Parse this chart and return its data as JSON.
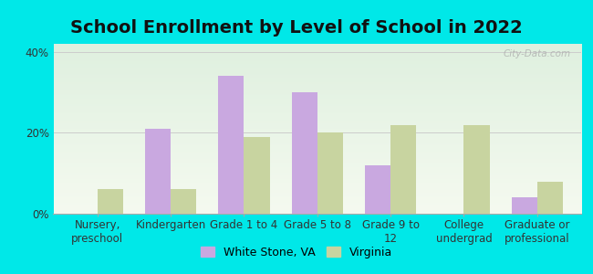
{
  "title": "School Enrollment by Level of School in 2022",
  "categories": [
    "Nursery,\npreschool",
    "Kindergarten",
    "Grade 1 to 4",
    "Grade 5 to 8",
    "Grade 9 to\n12",
    "College\nundergrad",
    "Graduate or\nprofessional"
  ],
  "white_stone": [
    0.0,
    21.0,
    34.0,
    30.0,
    12.0,
    0.0,
    4.0
  ],
  "virginia": [
    6.0,
    6.0,
    19.0,
    20.0,
    22.0,
    22.0,
    8.0
  ],
  "white_stone_color": "#c9a8e0",
  "virginia_color": "#c8d4a0",
  "background_outer": "#00e8e8",
  "background_inner": "#eaf5e4",
  "ylim": [
    0,
    42
  ],
  "yticks": [
    0,
    20,
    40
  ],
  "ytick_labels": [
    "0%",
    "20%",
    "40%"
  ],
  "legend_white_stone": "White Stone, VA",
  "legend_virginia": "Virginia",
  "watermark": "City-Data.com",
  "bar_width": 0.35,
  "title_fontsize": 14,
  "tick_fontsize": 8.5,
  "legend_fontsize": 9
}
